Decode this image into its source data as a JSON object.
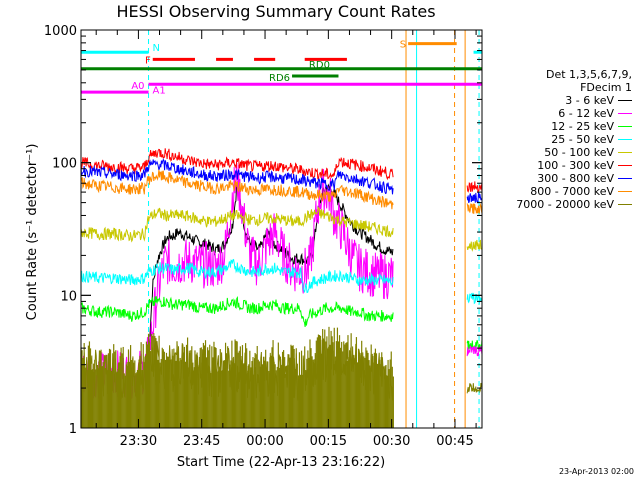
{
  "chart_data": {
    "type": "line",
    "title": "HESSI Observing Summary Count Rates",
    "xlabel": "Start Time (22-Apr-13 23:16:22)",
    "ylabel": "Count Rate (s⁻¹ detector⁻¹)",
    "yscale": "log",
    "ylim": [
      1,
      1000
    ],
    "y_tick_labels": [
      "1",
      "10",
      "100",
      "1000"
    ],
    "x_range_minutes": [
      0,
      95
    ],
    "x_ticks": [
      {
        "minute": 13.6,
        "label": "23:30"
      },
      {
        "minute": 28.6,
        "label": "23:45"
      },
      {
        "minute": 43.6,
        "label": "00:00"
      },
      {
        "minute": 58.6,
        "label": "00:15"
      },
      {
        "minute": 73.6,
        "label": "00:30"
      },
      {
        "minute": 88.6,
        "label": "00:45"
      }
    ],
    "legend_header": [
      "Det 1,3,5,6,7,9,",
      "FDecim 1"
    ],
    "series": [
      {
        "name": "3 - 6 keV",
        "color": "#000000",
        "x": [
          16,
          17,
          18,
          19,
          20,
          21,
          22,
          23,
          24,
          26,
          28,
          30,
          32,
          34,
          36,
          37,
          38,
          39,
          40,
          42,
          43,
          44,
          46,
          48,
          49,
          50,
          52,
          54,
          55,
          56,
          57,
          58,
          59,
          60,
          62,
          64,
          66,
          68,
          70,
          72,
          74
        ],
        "y": [
          3.5,
          12,
          18,
          22,
          26,
          28,
          28,
          30,
          29,
          27,
          25,
          24,
          22,
          24,
          35,
          70,
          45,
          30,
          25,
          22,
          24,
          30,
          24,
          22,
          20,
          19,
          19,
          18,
          22,
          40,
          55,
          65,
          62,
          58,
          45,
          35,
          30,
          27,
          24,
          22,
          21
        ]
      },
      {
        "name": "6 - 12 keV",
        "color": "#ff00ff",
        "x": [
          0,
          4,
          8,
          12,
          15,
          16,
          17,
          18,
          19,
          20,
          22,
          24,
          26,
          28,
          30,
          32,
          34,
          35,
          36,
          37,
          38,
          39,
          40,
          42,
          44,
          46,
          48,
          50,
          52,
          54,
          55,
          56,
          57,
          58,
          59,
          60,
          62,
          64,
          66,
          68,
          70,
          72,
          74
        ],
        "y": [
          2.6,
          2.5,
          2.6,
          2.5,
          2.7,
          3.5,
          6,
          10,
          14,
          18,
          17,
          18,
          18,
          17,
          17,
          16,
          20,
          35,
          60,
          75,
          50,
          30,
          20,
          17,
          24,
          30,
          20,
          16,
          15,
          16,
          25,
          45,
          60,
          62,
          55,
          40,
          30,
          20,
          16,
          15,
          14,
          14,
          14
        ]
      },
      {
        "name": "12 - 25 keV",
        "color": "#00ff00",
        "x": [
          0,
          4,
          8,
          12,
          15,
          16,
          18,
          20,
          22,
          24,
          26,
          28,
          30,
          32,
          34,
          36,
          38,
          40,
          42,
          44,
          46,
          48,
          50,
          52,
          53,
          54,
          56,
          58,
          60,
          62,
          64,
          66,
          68,
          70,
          72,
          74
        ],
        "y": [
          8,
          7.5,
          7.5,
          7,
          7.5,
          8.5,
          9,
          9,
          8.5,
          8.5,
          8.5,
          8,
          8,
          8,
          8.5,
          9,
          8.5,
          8,
          8,
          8.5,
          8.5,
          8,
          8,
          8,
          6,
          7,
          7.5,
          8,
          8,
          8,
          7.5,
          7.5,
          7,
          7,
          7,
          7
        ]
      },
      {
        "name": "25 - 50 keV",
        "color": "#00ffff",
        "x": [
          0,
          4,
          8,
          12,
          15,
          16,
          18,
          20,
          22,
          24,
          26,
          28,
          30,
          32,
          34,
          36,
          38,
          40,
          42,
          44,
          46,
          48,
          50,
          52,
          53,
          54,
          56,
          58,
          60,
          62,
          64,
          66,
          68,
          70,
          72,
          74
        ],
        "y": [
          14,
          13.5,
          13.5,
          13,
          13.5,
          15,
          16,
          16,
          15.5,
          16,
          16,
          15,
          15,
          15,
          16,
          17,
          16,
          15,
          15,
          16,
          16,
          15,
          15,
          15,
          11,
          12,
          13,
          13.5,
          14,
          14,
          13.5,
          13,
          13,
          13,
          13,
          12.5
        ]
      },
      {
        "name": "50 - 100 keV",
        "color": "#c8c800",
        "x": [
          0,
          4,
          8,
          12,
          15,
          16,
          18,
          20,
          22,
          24,
          26,
          28,
          30,
          32,
          34,
          36,
          38,
          40,
          42,
          44,
          46,
          48,
          50,
          52,
          54,
          56,
          58,
          60,
          62,
          64,
          66,
          68,
          70,
          72,
          74
        ],
        "y": [
          30,
          29,
          29,
          28,
          29,
          38,
          42,
          40,
          40,
          40,
          39,
          37,
          36,
          36,
          38,
          40,
          39,
          37,
          37,
          38,
          38,
          37,
          36,
          36,
          40,
          42,
          40,
          38,
          36,
          35,
          34,
          33,
          32,
          31,
          30
        ]
      },
      {
        "name": "100 - 300 keV",
        "color": "#ff0000",
        "x": [
          0,
          4,
          8,
          12,
          15,
          16,
          18,
          20,
          22,
          24,
          26,
          28,
          30,
          32,
          34,
          36,
          38,
          40,
          42,
          44,
          46,
          48,
          50,
          52,
          54,
          56,
          58,
          60,
          61,
          62,
          64,
          66,
          68,
          70,
          72,
          74
        ],
        "y": [
          100,
          95,
          93,
          90,
          92,
          110,
          120,
          118,
          112,
          108,
          103,
          100,
          97,
          96,
          98,
          100,
          97,
          94,
          93,
          95,
          95,
          92,
          90,
          88,
          85,
          83,
          82,
          80,
          105,
          102,
          98,
          95,
          92,
          88,
          85,
          80
        ]
      },
      {
        "name": "300 - 800 keV",
        "color": "#0000ff",
        "x": [
          0,
          4,
          8,
          12,
          15,
          16,
          18,
          20,
          22,
          24,
          26,
          28,
          30,
          32,
          34,
          36,
          38,
          40,
          42,
          44,
          46,
          48,
          50,
          52,
          54,
          56,
          58,
          60,
          61,
          62,
          64,
          66,
          68,
          70,
          72,
          74
        ],
        "y": [
          88,
          84,
          82,
          80,
          81,
          95,
          98,
          95,
          92,
          88,
          85,
          82,
          80,
          79,
          80,
          82,
          80,
          78,
          77,
          78,
          78,
          76,
          75,
          74,
          72,
          70,
          69,
          68,
          82,
          80,
          77,
          74,
          71,
          68,
          65,
          62
        ]
      },
      {
        "name": "800 - 7000 keV",
        "color": "#ff8c00",
        "x": [
          0,
          4,
          8,
          12,
          15,
          16,
          18,
          20,
          22,
          24,
          26,
          28,
          30,
          32,
          34,
          36,
          38,
          40,
          42,
          44,
          46,
          48,
          50,
          52,
          54,
          56,
          58,
          60,
          61,
          62,
          64,
          66,
          68,
          70,
          72,
          74
        ],
        "y": [
          70,
          67,
          65,
          63,
          64,
          75,
          80,
          78,
          75,
          72,
          69,
          67,
          65,
          64,
          65,
          67,
          65,
          63,
          62,
          63,
          63,
          62,
          61,
          60,
          58,
          57,
          56,
          55,
          64,
          62,
          60,
          58,
          55,
          52,
          50,
          48
        ]
      },
      {
        "name": "7000 - 20000 keV",
        "color": "#808000",
        "x": [
          0,
          4,
          8,
          12,
          15,
          16,
          18,
          20,
          22,
          24,
          26,
          28,
          30,
          32,
          34,
          36,
          38,
          40,
          42,
          44,
          46,
          48,
          50,
          52,
          54,
          56,
          58,
          60,
          62,
          64,
          66,
          68,
          70,
          72,
          74
        ],
        "y": [
          2.5,
          2.6,
          2.4,
          2.5,
          2.6,
          3,
          3,
          2.8,
          2.8,
          2.9,
          2.7,
          2.6,
          2.6,
          2.5,
          2.6,
          2.7,
          2.6,
          2.5,
          2.5,
          2.6,
          2.6,
          2.5,
          2.5,
          2.4,
          2.6,
          3,
          3.3,
          3.4,
          3.2,
          3,
          2.8,
          2.6,
          2.5,
          2.4,
          2.3
        ]
      }
    ],
    "late_segment": {
      "x_start": 91.5,
      "x_end": 95,
      "values": [
        66,
        54,
        45,
        24,
        9.5,
        4.2,
        3.8,
        2.0
      ]
    },
    "flags": [
      {
        "label": "N",
        "color": "#00ffff",
        "ranges": [
          [
            0,
            16
          ],
          [
            93,
            95
          ]
        ],
        "level": 680
      },
      {
        "label": "F",
        "color": "#ff0000",
        "ranges": [
          [
            17,
            27
          ],
          [
            32,
            36
          ],
          [
            41,
            46
          ],
          [
            53,
            63
          ]
        ],
        "level": 600
      },
      {
        "label": "RD0",
        "color": "#008000",
        "ranges": [
          [
            0,
            95
          ]
        ],
        "level": 510
      },
      {
        "label": "RD6",
        "color": "#008000",
        "ranges": [
          [
            50,
            61
          ]
        ],
        "level": 450
      },
      {
        "label": "A0",
        "color": "#ff00ff",
        "ranges": [
          [
            0,
            16
          ]
        ],
        "level": 340
      },
      {
        "label": "A1",
        "color": "#ff00ff",
        "ranges": [
          [
            16,
            95
          ]
        ],
        "level": 390
      },
      {
        "label": "S",
        "color": "#ff8c00",
        "ranges": [
          [
            77.5,
            89
          ]
        ],
        "level": 790
      }
    ],
    "vlines": [
      {
        "minute": 0,
        "color": "#00ffff",
        "style": "dashed"
      },
      {
        "minute": 16,
        "color": "#00ffff",
        "style": "dashed"
      },
      {
        "minute": 94.3,
        "color": "#00ffff",
        "style": "dashed"
      },
      {
        "minute": 79.5,
        "color": "#00ffff",
        "style": "solid"
      },
      {
        "minute": 77.0,
        "color": "#ff8c00",
        "style": "solid"
      },
      {
        "minute": 88.5,
        "color": "#ff8c00",
        "style": "dashed"
      },
      {
        "minute": 91.0,
        "color": "#ff8c00",
        "style": "solid"
      }
    ]
  },
  "footer": {
    "timestamp": "23-Apr-2013 02:00"
  }
}
